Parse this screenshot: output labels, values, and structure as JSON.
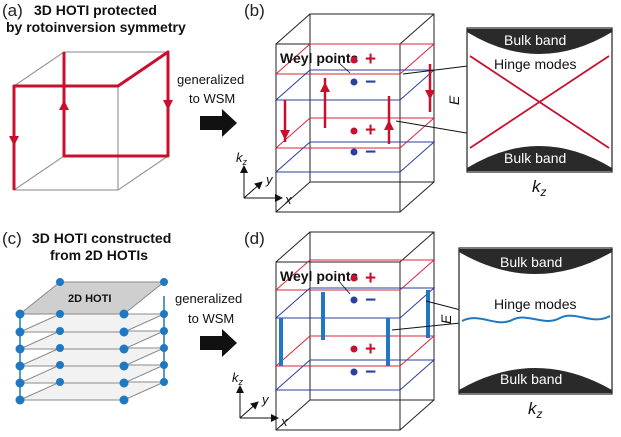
{
  "panels": {
    "a": {
      "label": "(a)",
      "title_line1": "3D HOTI protected",
      "title_line2": "by rotoinversion symmetry"
    },
    "b": {
      "label": "(b)"
    },
    "c": {
      "label": "(c)",
      "title_line1": "3D HOTI constructed",
      "title_line2": "from 2D HOTIs",
      "layer_label": "2D HOTI"
    },
    "d": {
      "label": "(d)"
    }
  },
  "arrow_text": {
    "line1": "generalized",
    "line2": "to WSM"
  },
  "weyl_points_label": "Weyl points",
  "charge_plus": "+",
  "charge_minus": "−",
  "bulk_band_label": "Bulk band",
  "hinge_modes_label": "Hinge modes",
  "energy_axis_label": "E",
  "momentum_label": "k",
  "momentum_sub": "z",
  "axes": {
    "kz": "k",
    "kz_sub": "z",
    "x": "x",
    "y": "y"
  },
  "colors": {
    "hinge_red": "#c8102e",
    "plane_red": "#d9263a",
    "plane_blue": "#2b3f9e",
    "hinge_blue": "#1f78c1",
    "bulk_band": "#2a2a2a",
    "layer_fill": "#cfcfcf"
  }
}
